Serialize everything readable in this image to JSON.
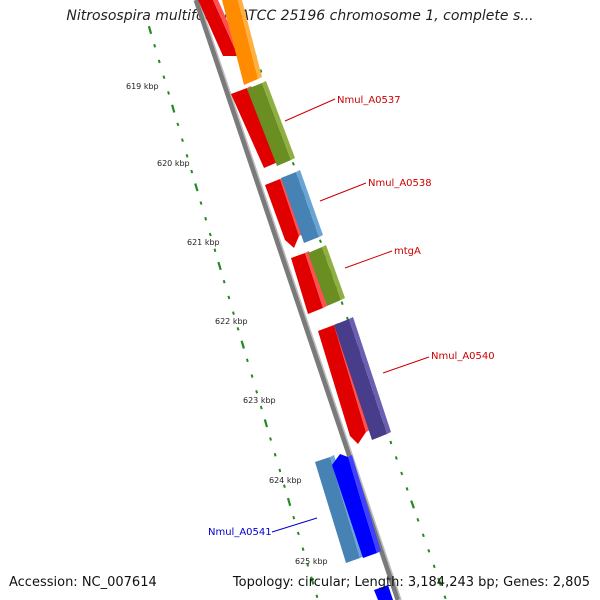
{
  "title": "Nitrosospira multiformis ATCC 25196 chromosome 1, complete s...",
  "footer": {
    "accession": "Accession: NC_007614",
    "summary": "Topology: circular; Length: 3,184,243 bp; Genes: 2,805"
  },
  "scale_labels": [
    "619 kbp",
    "620 kbp",
    "621 kbp",
    "622 kbp",
    "623 kbp",
    "624 kbp",
    "625 kbp"
  ],
  "gene_labels": [
    {
      "text": "Nmul_A0537",
      "color": "#cc0000"
    },
    {
      "text": "Nmul_A0538",
      "color": "#cc0000"
    },
    {
      "text": "mtgA",
      "color": "#cc0000"
    },
    {
      "text": "Nmul_A0540",
      "color": "#cc0000"
    },
    {
      "text": "Nmul_A0541",
      "color": "#0000cc"
    }
  ],
  "colors": {
    "backbone": "#888888",
    "tick": "#228b22",
    "gene_red": "#ff0000",
    "gene_orange": "#ff8c00",
    "gene_olive": "#6b8e23",
    "gene_steelblue": "#4682b4",
    "gene_purple": "#483d8b",
    "gene_blue": "#0000ff"
  }
}
